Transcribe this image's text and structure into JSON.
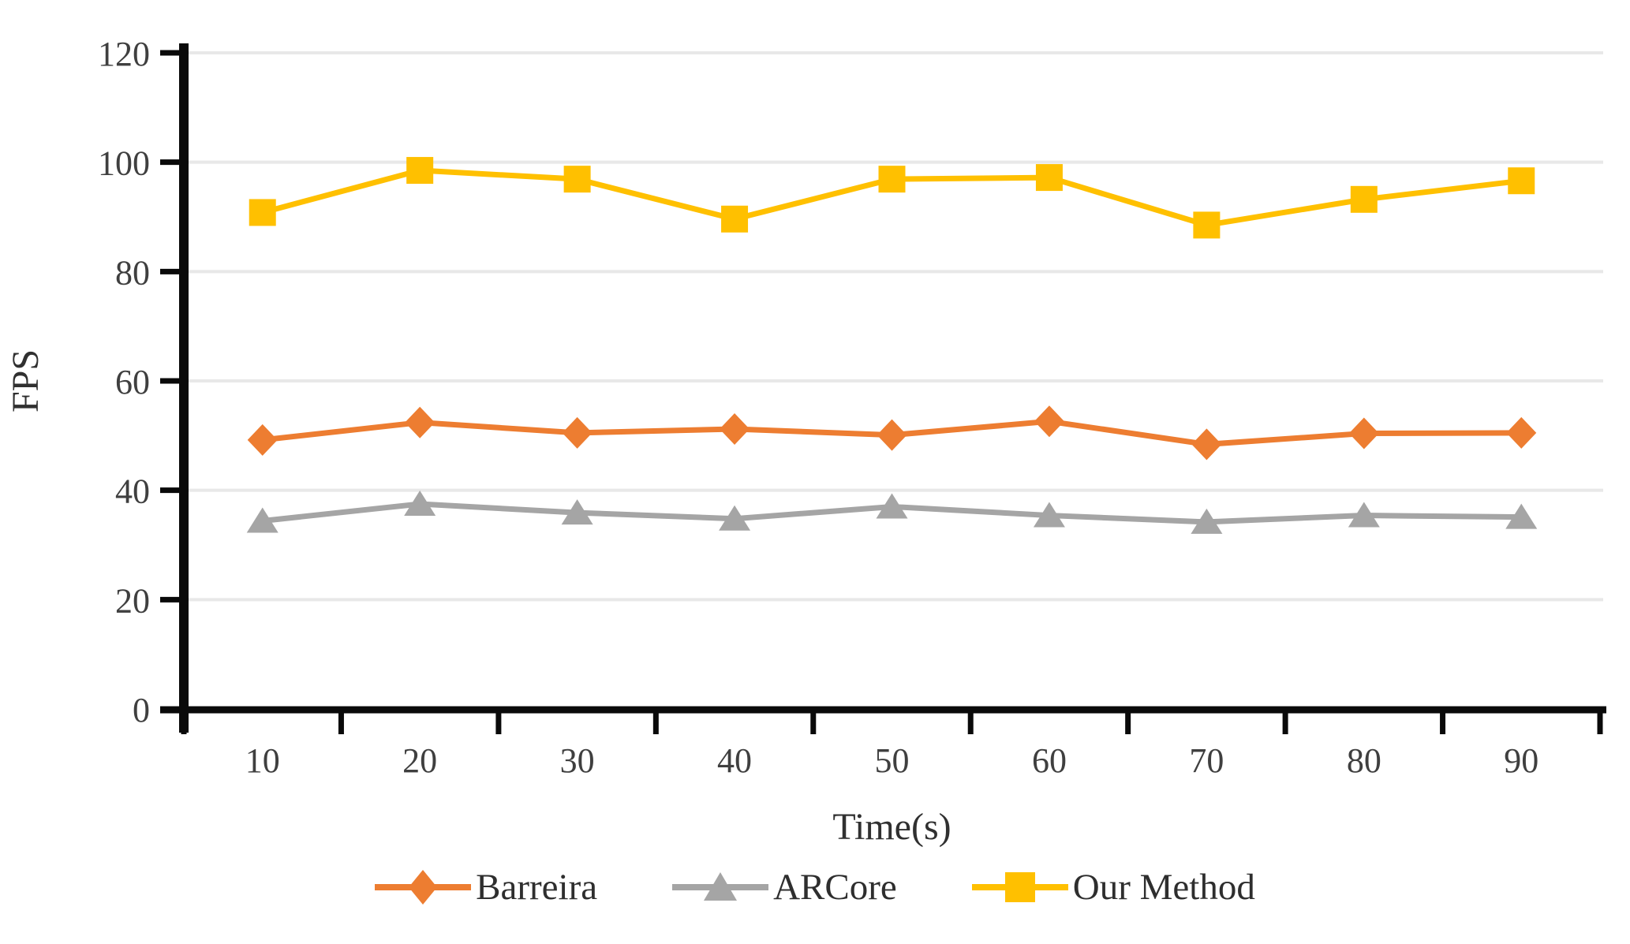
{
  "chart_data": {
    "type": "line",
    "title": "",
    "xlabel": "Time(s)",
    "ylabel": "FPS",
    "x": [
      10,
      20,
      30,
      40,
      50,
      60,
      70,
      80,
      90
    ],
    "ylim": [
      0,
      120
    ],
    "yticks": [
      0,
      20,
      40,
      60,
      80,
      100,
      120
    ],
    "grid": true,
    "legend_position": "bottom",
    "series": [
      {
        "name": "Barreira",
        "color": "#ED7D31",
        "marker": "diamond",
        "values": [
          49.2,
          52.4,
          50.5,
          51.2,
          50.1,
          52.6,
          48.4,
          50.4,
          50.5
        ]
      },
      {
        "name": "ARCore",
        "color": "#A5A5A5",
        "marker": "triangle",
        "values": [
          34.4,
          37.5,
          35.9,
          34.8,
          37.0,
          35.4,
          34.2,
          35.4,
          35.1
        ]
      },
      {
        "name": "Our Method",
        "color": "#FFC000",
        "marker": "square",
        "values": [
          90.8,
          98.5,
          96.9,
          89.6,
          96.9,
          97.2,
          88.5,
          93.2,
          96.6
        ]
      }
    ],
    "colors": {
      "axis": "#0a0a0a",
      "gridline": "#e8e8e8",
      "tick_label": "#3f3f3f"
    }
  }
}
